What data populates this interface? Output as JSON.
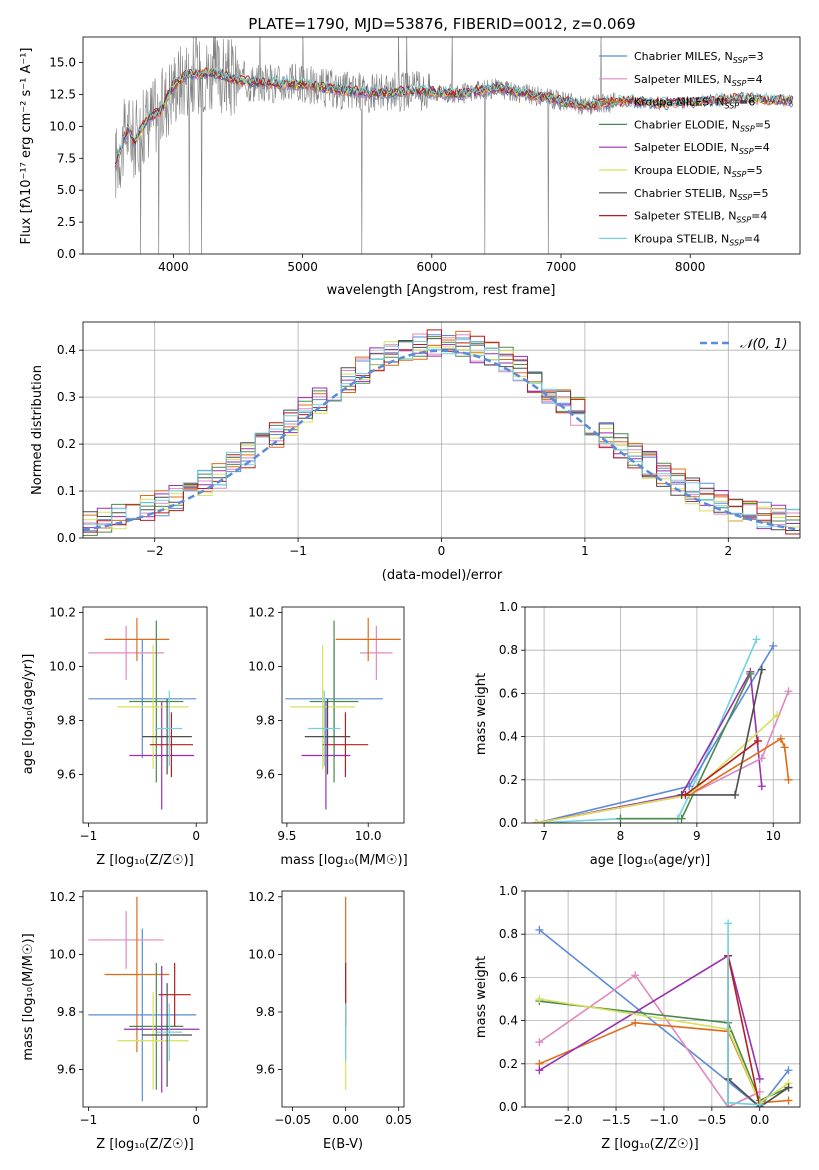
{
  "colors": {
    "Chabrier MILES": "#5b8bd9",
    "Salpeter MILES": "#e088c0",
    "Kroupa MILES": "#e06c1a",
    "Chabrier ELODIE": "#4b8a4b",
    "Salpeter ELODIE": "#9a2fb0",
    "Kroupa ELODIE": "#d8e05a",
    "Chabrier STELIB": "#4d4d4d",
    "Salpeter STELIB": "#b81c1c",
    "Kroupa STELIB": "#70d2e0",
    "normal": "#5b8bd9",
    "data": "#808080"
  },
  "chart_data": [
    {
      "id": "spectrum",
      "type": "line",
      "title": "PLATE=1790, MJD=53876, FIBERID=0012, z=0.069",
      "xlabel": "wavelength [Angstrom, rest frame]",
      "ylabel": "Flux [fλ10⁻¹⁷ erg cm⁻² s⁻¹ A⁻¹]",
      "xlim": [
        3300,
        8850
      ],
      "ylim": [
        0,
        17
      ],
      "xticks": [
        "4000",
        "5000",
        "6000",
        "7000",
        "8000"
      ],
      "yticks": [
        "0.0",
        "2.5",
        "5.0",
        "7.5",
        "10.0",
        "12.5",
        "15.0"
      ],
      "legend_position": "upper right",
      "series": [
        {
          "name": "Chabrier MILES, N",
          "sub": "SSP",
          "suffix": "=3"
        },
        {
          "name": "Salpeter MILES, N",
          "sub": "SSP",
          "suffix": "=4"
        },
        {
          "name": "Kroupa MILES, N",
          "sub": "SSP",
          "suffix": "=6"
        },
        {
          "name": "Chabrier ELODIE, N",
          "sub": "SSP",
          "suffix": "=5"
        },
        {
          "name": "Salpeter ELODIE, N",
          "sub": "SSP",
          "suffix": "=4"
        },
        {
          "name": "Kroupa ELODIE, N",
          "sub": "SSP",
          "suffix": "=5"
        },
        {
          "name": "Chabrier STELIB, N",
          "sub": "SSP",
          "suffix": "=5"
        },
        {
          "name": "Salpeter STELIB, N",
          "sub": "SSP",
          "suffix": "=4"
        },
        {
          "name": "Kroupa STELIB, N",
          "sub": "SSP",
          "suffix": "=4"
        }
      ],
      "model_continuum": {
        "x": [
          3550,
          3600,
          3650,
          3700,
          3800,
          3900,
          4000,
          4100,
          4300,
          4500,
          4700,
          5000,
          5300,
          5600,
          5900,
          6200,
          6500,
          6800,
          7000,
          7200,
          7500,
          7800,
          8100,
          8400,
          8800
        ],
        "y": [
          7.0,
          8.5,
          9.8,
          8.8,
          10.6,
          11.2,
          13.2,
          14.0,
          14.2,
          13.6,
          13.4,
          13.3,
          12.8,
          12.6,
          12.8,
          12.5,
          13.0,
          12.4,
          12.0,
          11.6,
          12.0,
          11.8,
          12.0,
          12.2,
          12.0
        ]
      }
    },
    {
      "id": "residuals",
      "type": "histogram",
      "xlabel": "(data-model)/error",
      "ylabel": "Normed distribution",
      "xlim": [
        -2.5,
        2.5
      ],
      "ylim": [
        0,
        0.46
      ],
      "xticks": [
        "−2",
        "−1",
        "0",
        "1",
        "2"
      ],
      "yticks": [
        "0.0",
        "0.1",
        "0.2",
        "0.3",
        "0.4"
      ],
      "legend": "𝒩(0, 1)",
      "legend_position": "upper right",
      "grid": true,
      "bin_width": 0.1
    },
    {
      "id": "age_vs_Z",
      "type": "errorbar",
      "xlabel": "Z [log₁₀(Z/Z☉)]",
      "ylabel": "age  [log₁₀(age/yr)]",
      "xlim": [
        -1.05,
        0.1
      ],
      "ylim": [
        9.42,
        10.22
      ],
      "xticks": [
        "−1",
        "0"
      ],
      "yticks": [
        "9.6",
        "9.8",
        "10.0",
        "10.2"
      ],
      "points": [
        {
          "model": "Chabrier MILES",
          "x": -0.5,
          "xerr": 0.5,
          "y": 9.88,
          "yerr": 0.22
        },
        {
          "model": "Salpeter MILES",
          "x": -0.65,
          "xerr": 0.35,
          "y": 10.05,
          "yerr": 0.1
        },
        {
          "model": "Kroupa MILES",
          "x": -0.55,
          "xerr": 0.3,
          "y": 10.1,
          "yerr": 0.08
        },
        {
          "model": "Chabrier ELODIE",
          "x": -0.37,
          "xerr": 0.25,
          "y": 9.87,
          "yerr": 0.3
        },
        {
          "model": "Salpeter ELODIE",
          "x": -0.32,
          "xerr": 0.3,
          "y": 9.67,
          "yerr": 0.2
        },
        {
          "model": "Kroupa ELODIE",
          "x": -0.4,
          "xerr": 0.33,
          "y": 9.85,
          "yerr": 0.23
        },
        {
          "model": "Chabrier STELIB",
          "x": -0.27,
          "xerr": 0.23,
          "y": 9.74,
          "yerr": 0.14
        },
        {
          "model": "Salpeter STELIB",
          "x": -0.23,
          "xerr": 0.2,
          "y": 9.71,
          "yerr": 0.12
        },
        {
          "model": "Kroupa STELIB",
          "x": -0.25,
          "xerr": 0.12,
          "y": 9.77,
          "yerr": 0.14
        }
      ]
    },
    {
      "id": "age_vs_mass",
      "type": "errorbar",
      "xlabel": "mass [log₁₀(M/M☉)]",
      "xlim": [
        9.47,
        10.22
      ],
      "ylim": [
        9.42,
        10.22
      ],
      "xticks": [
        "9.5",
        "10.0"
      ],
      "yticks": [
        "9.6",
        "9.8",
        "10.0",
        "10.2"
      ],
      "points": [
        {
          "model": "Chabrier MILES",
          "x": 9.79,
          "xerr": 0.3,
          "y": 9.88,
          "yerr": 0.22
        },
        {
          "model": "Salpeter MILES",
          "x": 10.05,
          "xerr": 0.1,
          "y": 10.05,
          "yerr": 0.1
        },
        {
          "model": "Kroupa MILES",
          "x": 10.0,
          "xerr": 0.2,
          "y": 10.1,
          "yerr": 0.08
        },
        {
          "model": "Chabrier ELODIE",
          "x": 9.79,
          "xerr": 0.15,
          "y": 9.87,
          "yerr": 0.3
        },
        {
          "model": "Salpeter ELODIE",
          "x": 9.74,
          "xerr": 0.15,
          "y": 9.67,
          "yerr": 0.2
        },
        {
          "model": "Kroupa ELODIE",
          "x": 9.72,
          "xerr": 0.2,
          "y": 9.85,
          "yerr": 0.23
        },
        {
          "model": "Chabrier STELIB",
          "x": 9.75,
          "xerr": 0.14,
          "y": 9.74,
          "yerr": 0.14
        },
        {
          "model": "Salpeter STELIB",
          "x": 9.86,
          "xerr": 0.14,
          "y": 9.71,
          "yerr": 0.12
        },
        {
          "model": "Kroupa STELIB",
          "x": 9.73,
          "xerr": 0.1,
          "y": 9.77,
          "yerr": 0.14
        }
      ]
    },
    {
      "id": "massweight_vs_age",
      "type": "line",
      "xlabel": "age  [log₁₀(age/yr)]",
      "ylabel": "mass weight",
      "xlim": [
        6.75,
        10.35
      ],
      "ylim": [
        0,
        1
      ],
      "xticks": [
        "7",
        "8",
        "9",
        "10"
      ],
      "yticks": [
        "0.0",
        "0.2",
        "0.4",
        "0.6",
        "0.8",
        "1.0"
      ],
      "grid": true,
      "series": [
        {
          "model": "Kroupa STELIB",
          "x": [
            6.9,
            8.0,
            8.75,
            8.9,
            9.78
          ],
          "y": [
            0.0,
            0.02,
            0.02,
            0.13,
            0.85
          ]
        },
        {
          "model": "Chabrier MILES",
          "x": [
            6.9,
            8.9,
            10.0
          ],
          "y": [
            0.0,
            0.17,
            0.82
          ]
        },
        {
          "model": "Salpeter ELODIE",
          "x": [
            6.9,
            8.8,
            9.7,
            9.85
          ],
          "y": [
            0.0,
            0.13,
            0.7,
            0.17
          ]
        },
        {
          "model": "Chabrier ELODIE",
          "x": [
            8.0,
            8.8,
            9.7
          ],
          "y": [
            0.02,
            0.02,
            0.69
          ]
        },
        {
          "model": "Salpeter MILES",
          "x": [
            6.9,
            8.9,
            9.85,
            10.2
          ],
          "y": [
            0.0,
            0.13,
            0.3,
            0.61
          ]
        },
        {
          "model": "Kroupa MILES",
          "x": [
            6.9,
            8.9,
            10.1,
            10.15,
            10.2
          ],
          "y": [
            0.0,
            0.13,
            0.39,
            0.35,
            0.2
          ]
        },
        {
          "model": "Kroupa ELODIE",
          "x": [
            6.9,
            8.9,
            10.05
          ],
          "y": [
            0.0,
            0.13,
            0.5
          ]
        },
        {
          "model": "Chabrier STELIB",
          "x": [
            8.8,
            9.5,
            9.85
          ],
          "y": [
            0.13,
            0.13,
            0.71
          ]
        },
        {
          "model": "Salpeter STELIB",
          "x": [
            8.85,
            9.8
          ],
          "y": [
            0.13,
            0.38
          ]
        }
      ]
    },
    {
      "id": "mass_vs_Z",
      "type": "errorbar",
      "xlabel": "Z [log₁₀(Z/Z☉)]",
      "ylabel": "mass [log₁₀(M/M☉)]",
      "xlim": [
        -1.05,
        0.1
      ],
      "ylim": [
        9.47,
        10.22
      ],
      "xticks": [
        "−1",
        "0"
      ],
      "yticks": [
        "9.6",
        "9.8",
        "10.0",
        "10.2"
      ],
      "points": [
        {
          "model": "Chabrier MILES",
          "x": -0.5,
          "xerr": 0.5,
          "y": 9.79,
          "yerr": 0.3
        },
        {
          "model": "Salpeter MILES",
          "x": -0.65,
          "xerr": 0.35,
          "y": 10.05,
          "yerr": 0.1
        },
        {
          "model": "Kroupa MILES",
          "x": -0.55,
          "xerr": 0.3,
          "y": 9.93,
          "yerr": 0.27
        },
        {
          "model": "Chabrier ELODIE",
          "x": -0.37,
          "xerr": 0.25,
          "y": 9.75,
          "yerr": 0.22
        },
        {
          "model": "Salpeter ELODIE",
          "x": -0.32,
          "xerr": 0.35,
          "y": 9.74,
          "yerr": 0.22
        },
        {
          "model": "Kroupa ELODIE",
          "x": -0.4,
          "xerr": 0.33,
          "y": 9.7,
          "yerr": 0.17
        },
        {
          "model": "Chabrier STELIB",
          "x": -0.27,
          "xerr": 0.23,
          "y": 9.72,
          "yerr": 0.18
        },
        {
          "model": "Salpeter STELIB",
          "x": -0.2,
          "xerr": 0.15,
          "y": 9.86,
          "yerr": 0.11
        },
        {
          "model": "Kroupa STELIB",
          "x": -0.25,
          "xerr": 0.12,
          "y": 9.73,
          "yerr": 0.1
        }
      ]
    },
    {
      "id": "mass_vs_EBV",
      "type": "errorbar",
      "xlabel": "E(B-V)",
      "xlim": [
        -0.06,
        0.055
      ],
      "ylim": [
        9.47,
        10.22
      ],
      "xticks": [
        "−0.05",
        "0.00",
        "0.05"
      ],
      "yticks": [
        "9.6",
        "9.8",
        "10.0",
        "10.2"
      ],
      "points": [
        {
          "model": "Kroupa MILES",
          "x": 0.0,
          "xerr": 0.0,
          "y": 9.93,
          "yerr": 0.27
        },
        {
          "model": "Kroupa ELODIE",
          "x": 0.0,
          "xerr": 0.0,
          "y": 9.7,
          "yerr": 0.17
        },
        {
          "model": "Salpeter STELIB",
          "x": 0.0,
          "xerr": 0.0,
          "y": 9.86,
          "yerr": 0.11
        },
        {
          "model": "Kroupa STELIB",
          "x": 0.0,
          "xerr": 0.0,
          "y": 9.73,
          "yerr": 0.1
        }
      ]
    },
    {
      "id": "massweight_vs_Z",
      "type": "line",
      "xlabel": "Z [log₁₀(Z/Z☉)]",
      "ylabel": "mass weight",
      "xlim": [
        -2.45,
        0.42
      ],
      "ylim": [
        0,
        1
      ],
      "xticks": [
        "−2.0",
        "−1.5",
        "−1.0",
        "−0.5",
        "0.0"
      ],
      "yticks": [
        "0.0",
        "0.2",
        "0.4",
        "0.6",
        "0.8",
        "1.0"
      ],
      "grid": true,
      "series": [
        {
          "model": "Chabrier MILES",
          "x": [
            -2.3,
            0.0,
            0.3
          ],
          "y": [
            0.82,
            0.0,
            0.17
          ]
        },
        {
          "model": "Salpeter MILES",
          "x": [
            -2.3,
            -1.3,
            -0.33,
            0.0
          ],
          "y": [
            0.3,
            0.61,
            0.0,
            0.07
          ]
        },
        {
          "model": "Kroupa MILES",
          "x": [
            -2.3,
            -1.3,
            -0.33,
            0.0,
            0.3
          ],
          "y": [
            0.2,
            0.39,
            0.35,
            0.02,
            0.03
          ]
        },
        {
          "model": "Chabrier ELODIE",
          "x": [
            -2.3,
            -0.33,
            0.0,
            0.3
          ],
          "y": [
            0.49,
            0.39,
            0.03,
            0.09
          ]
        },
        {
          "model": "Salpeter ELODIE",
          "x": [
            -2.3,
            -0.33,
            0.0
          ],
          "y": [
            0.17,
            0.7,
            0.13
          ]
        },
        {
          "model": "Kroupa ELODIE",
          "x": [
            -2.3,
            -0.33,
            0.0,
            0.3
          ],
          "y": [
            0.5,
            0.36,
            0.02,
            0.11
          ]
        },
        {
          "model": "Chabrier STELIB",
          "x": [
            -0.33,
            0.0,
            0.3
          ],
          "y": [
            0.13,
            0.0,
            0.09
          ]
        },
        {
          "model": "Salpeter STELIB",
          "x": [
            -0.33,
            -0.33,
            0.0
          ],
          "y": [
            0.02,
            0.7,
            0.0
          ]
        },
        {
          "model": "Kroupa STELIB",
          "x": [
            -0.33,
            -0.33,
            0.0
          ],
          "y": [
            0.85,
            0.02,
            0.01
          ]
        }
      ]
    }
  ]
}
